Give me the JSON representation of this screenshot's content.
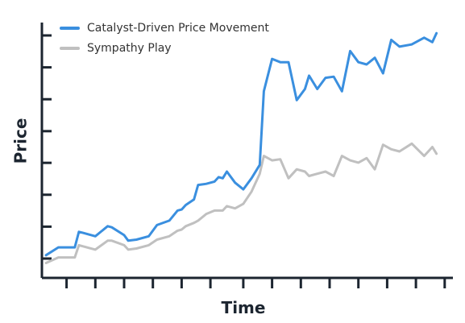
{
  "chart_data": {
    "type": "line",
    "xlabel": "Time",
    "ylabel": "Price",
    "xlim": [
      0,
      100
    ],
    "ylim": [
      0,
      100
    ],
    "x_ticks": [
      6,
      13,
      20,
      27,
      34,
      41,
      49,
      56,
      63,
      70,
      77,
      84,
      91,
      98
    ],
    "y_ticks": [
      0,
      14.3,
      28.6,
      42.9,
      57.1,
      71.4,
      85.7,
      100
    ],
    "grid": false,
    "legend_position": "top-left",
    "x": [
      1,
      4,
      6,
      8,
      9,
      10,
      13,
      16,
      17,
      20,
      21,
      23,
      26,
      28,
      31,
      33,
      34,
      35,
      37,
      38,
      40,
      42,
      43,
      44,
      45,
      47,
      49,
      51,
      53,
      54,
      56,
      58,
      60,
      62,
      64,
      65,
      67,
      69,
      71,
      73,
      75,
      77,
      79,
      81,
      83,
      85,
      87,
      90,
      93,
      95,
      96
    ],
    "series": [
      {
        "name": "Catalyst-Driven Price Movement",
        "color": "#3a8fdf",
        "values": [
          1.5,
          5,
          5,
          5,
          12,
          11.5,
          10,
          14.5,
          14,
          10.5,
          8,
          8.5,
          10,
          15,
          17,
          21.5,
          22,
          24,
          26.5,
          33,
          33.5,
          34.5,
          36.5,
          36,
          39,
          34,
          31,
          36,
          42,
          75,
          89.5,
          88,
          88,
          71,
          76,
          82,
          76,
          81,
          81.5,
          75,
          93,
          88,
          87,
          90,
          83,
          98,
          95,
          96,
          99,
          97,
          101
        ]
      },
      {
        "name": "Sympathy Play",
        "color": "#c0c0c0",
        "values": [
          -2,
          0.5,
          0.5,
          0.5,
          6,
          5.5,
          4,
          8,
          8,
          6,
          4,
          4.5,
          6,
          8.5,
          10,
          12.5,
          13,
          14.5,
          16,
          17,
          20,
          21.5,
          21.5,
          21.5,
          23.5,
          22.5,
          24.5,
          30,
          38,
          46,
          44,
          44.5,
          36,
          40,
          39,
          37,
          38,
          39,
          37,
          46,
          44,
          43,
          45,
          40,
          51,
          49,
          48,
          51.5,
          46,
          50,
          47
        ]
      }
    ]
  }
}
